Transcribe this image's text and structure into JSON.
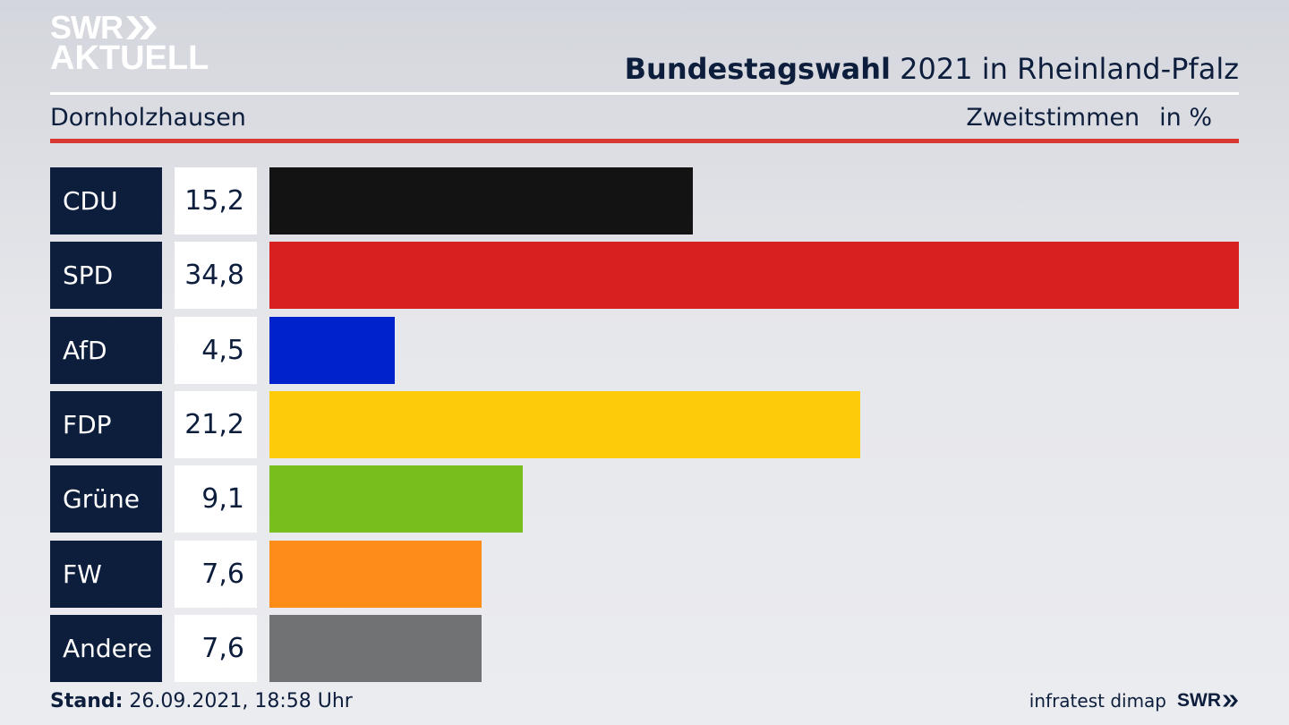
{
  "logo": {
    "line1": "SWR",
    "line2": "AKTUELL"
  },
  "header": {
    "title_bold": "Bundestagswahl",
    "title_rest": " 2021 in Rheinland-Pfalz",
    "region": "Dornholzhausen",
    "measure": "Zweitstimmen",
    "unit": "in %"
  },
  "chart_data": {
    "type": "bar",
    "orientation": "horizontal",
    "categories": [
      "CDU",
      "SPD",
      "AfD",
      "FDP",
      "Grüne",
      "FW",
      "Andere"
    ],
    "values": [
      15.2,
      34.8,
      4.5,
      21.2,
      9.1,
      7.6,
      7.6
    ],
    "value_labels": [
      "15,2",
      "34,8",
      "4,5",
      "21,2",
      "9,1",
      "7,6",
      "7,6"
    ],
    "colors": [
      "#131313",
      "#d82020",
      "#0022cc",
      "#fecb0a",
      "#76bf1c",
      "#fd8c19",
      "#717274"
    ],
    "xlim": [
      0,
      34.8
    ],
    "grid": false
  },
  "footer": {
    "stand_label": "Stand:",
    "stand_value": " 26.09.2021, 18:58 Uhr",
    "source": "infratest dimap",
    "brand": "SWR"
  }
}
